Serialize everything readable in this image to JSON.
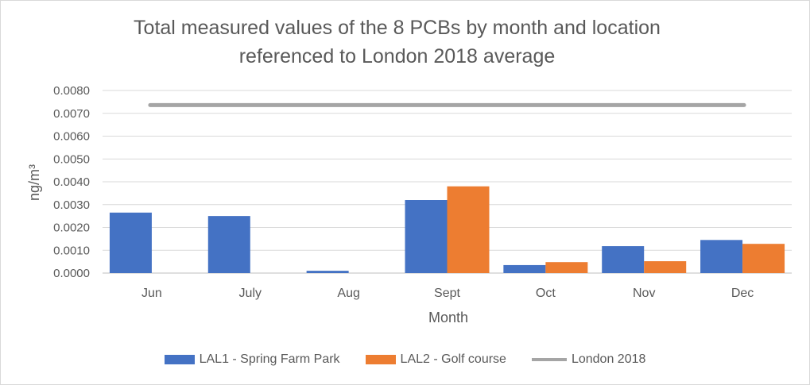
{
  "chart_data": {
    "type": "bar",
    "title_line1": "Total measured values of the 8 PCBs by month and location",
    "title_line2": "referenced to London 2018 average",
    "xlabel": "Month",
    "ylabel": "ng/m³",
    "ylim": [
      0,
      0.008
    ],
    "yticks": [
      "0.0000",
      "0.0010",
      "0.0020",
      "0.0030",
      "0.0040",
      "0.0050",
      "0.0060",
      "0.0070",
      "0.0080"
    ],
    "categories": [
      "Jun",
      "July",
      "Aug",
      "Sept",
      "Oct",
      "Nov",
      "Dec"
    ],
    "series": [
      {
        "name": "LAL1 - Spring Farm Park",
        "color": "#4472c4",
        "values": [
          0.00265,
          0.0025,
          0.0001,
          0.0032,
          0.00035,
          0.00118,
          0.00145
        ]
      },
      {
        "name": "LAL2 - Golf course",
        "color": "#ed7d31",
        "values": [
          0,
          0,
          0,
          0.0038,
          0.00048,
          0.00052,
          0.00128
        ]
      }
    ],
    "reference_line": {
      "name": "London 2018",
      "color": "#a5a5a5",
      "value": 0.00736
    },
    "grid": true,
    "legend_position": "bottom"
  }
}
